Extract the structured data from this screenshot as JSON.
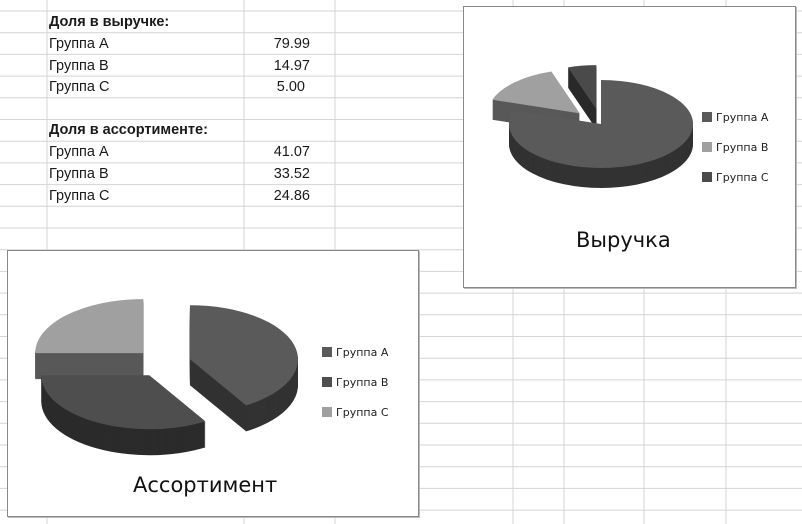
{
  "sheet": {
    "revenue_header": "Доля в выручке:",
    "revenue_rows": [
      {
        "label": "Группа A",
        "value": "79.99"
      },
      {
        "label": "Группа B",
        "value": "14.97"
      },
      {
        "label": "Группа C",
        "value": "5.00"
      }
    ],
    "assortment_header": "Доля в ассортименте:",
    "assortment_rows": [
      {
        "label": "Группа A",
        "value": "41.07"
      },
      {
        "label": "Группа B",
        "value": "33.52"
      },
      {
        "label": "Группа C",
        "value": "24.86"
      }
    ]
  },
  "chart_data": [
    {
      "type": "pie",
      "style": "3d-exploded",
      "title": "Выручка",
      "categories": [
        "Группа A",
        "Группа B",
        "Группа C"
      ],
      "values": [
        79.99,
        14.97,
        5.0
      ],
      "exploded": [
        false,
        true,
        true
      ],
      "colors": [
        "#5a5a5a",
        "#a0a0a0",
        "#4a4a4a"
      ],
      "legend": "right"
    },
    {
      "type": "pie",
      "style": "3d-exploded",
      "title": "Ассортимент",
      "categories": [
        "Группа A",
        "Группа B",
        "Группа C"
      ],
      "values": [
        41.07,
        33.52,
        24.86
      ],
      "exploded": [
        true,
        true,
        true
      ],
      "colors": [
        "#5a5a5a",
        "#4e4e4e",
        "#a0a0a0"
      ],
      "legend": "right"
    }
  ]
}
